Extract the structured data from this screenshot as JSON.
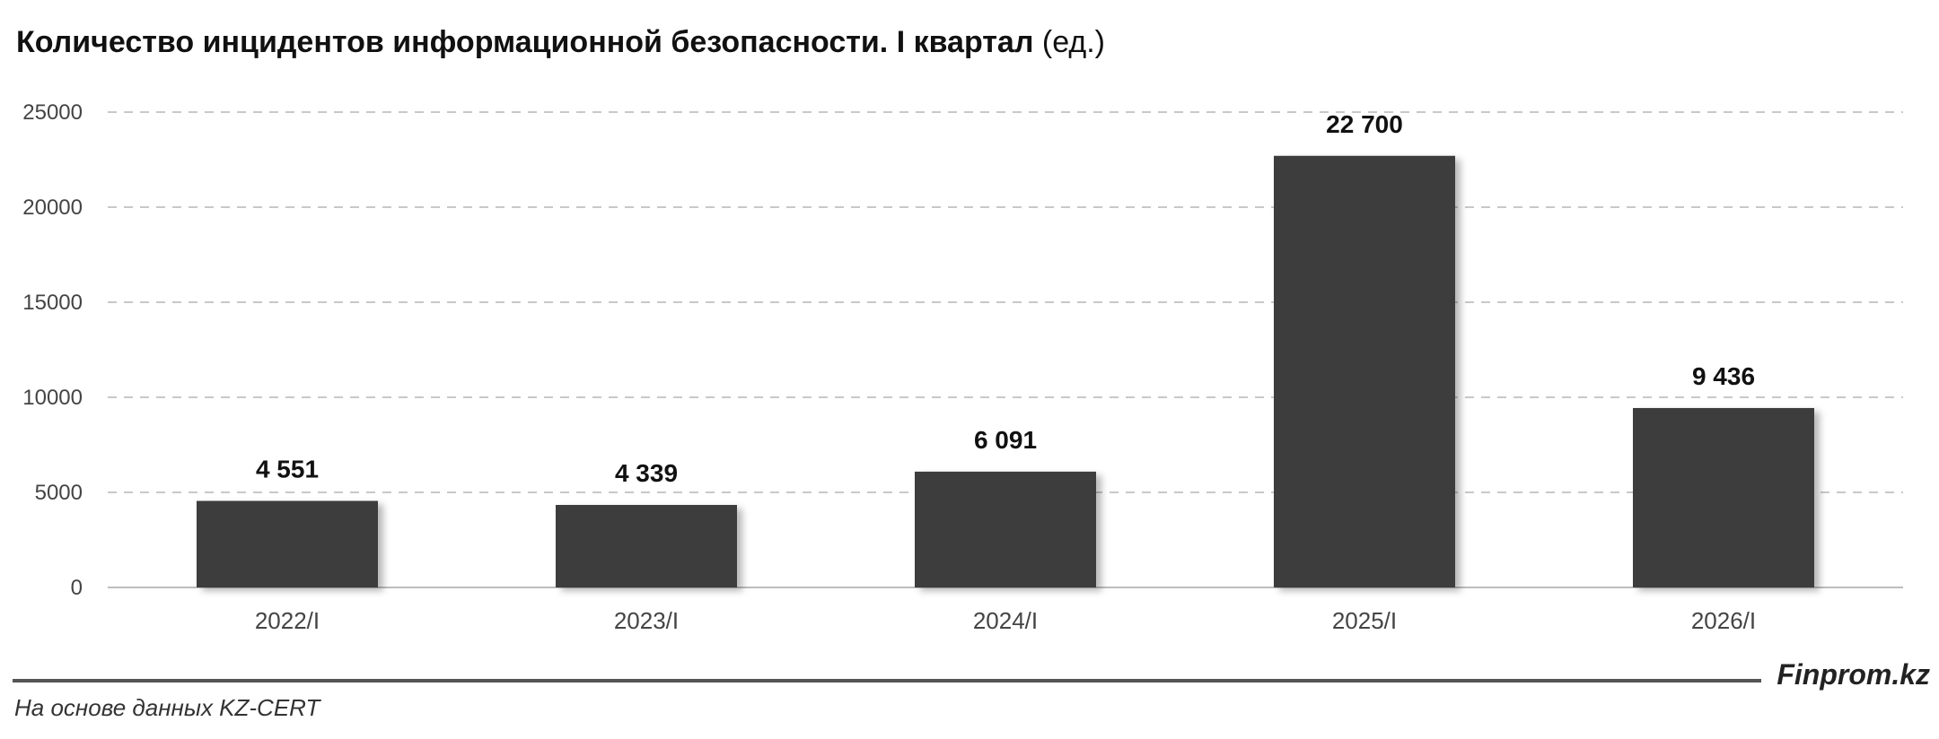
{
  "chart_data": {
    "type": "bar",
    "title": "Количество инцидентов информационной безопасности. I квартал",
    "title_unit": "(ед.)",
    "categories": [
      "2022/I",
      "2023/I",
      "2024/I",
      "2025/I",
      "2026/I"
    ],
    "values": [
      4551,
      4339,
      6091,
      22700,
      9436
    ],
    "value_labels": [
      "4 551",
      "4 339",
      "6 091",
      "22 700",
      "9 436"
    ],
    "yticks": [
      0,
      5000,
      10000,
      15000,
      20000,
      25000
    ],
    "ylim": [
      0,
      25000
    ],
    "xlabel": "",
    "ylabel": "",
    "grid": "horizontal-dashed",
    "legend": "none",
    "bar_color": "#3d3d3d",
    "grid_color": "#c8c8c8"
  },
  "footer": {
    "brand": "Finprom.kz",
    "source": "На основе данных KZ-CERT"
  }
}
